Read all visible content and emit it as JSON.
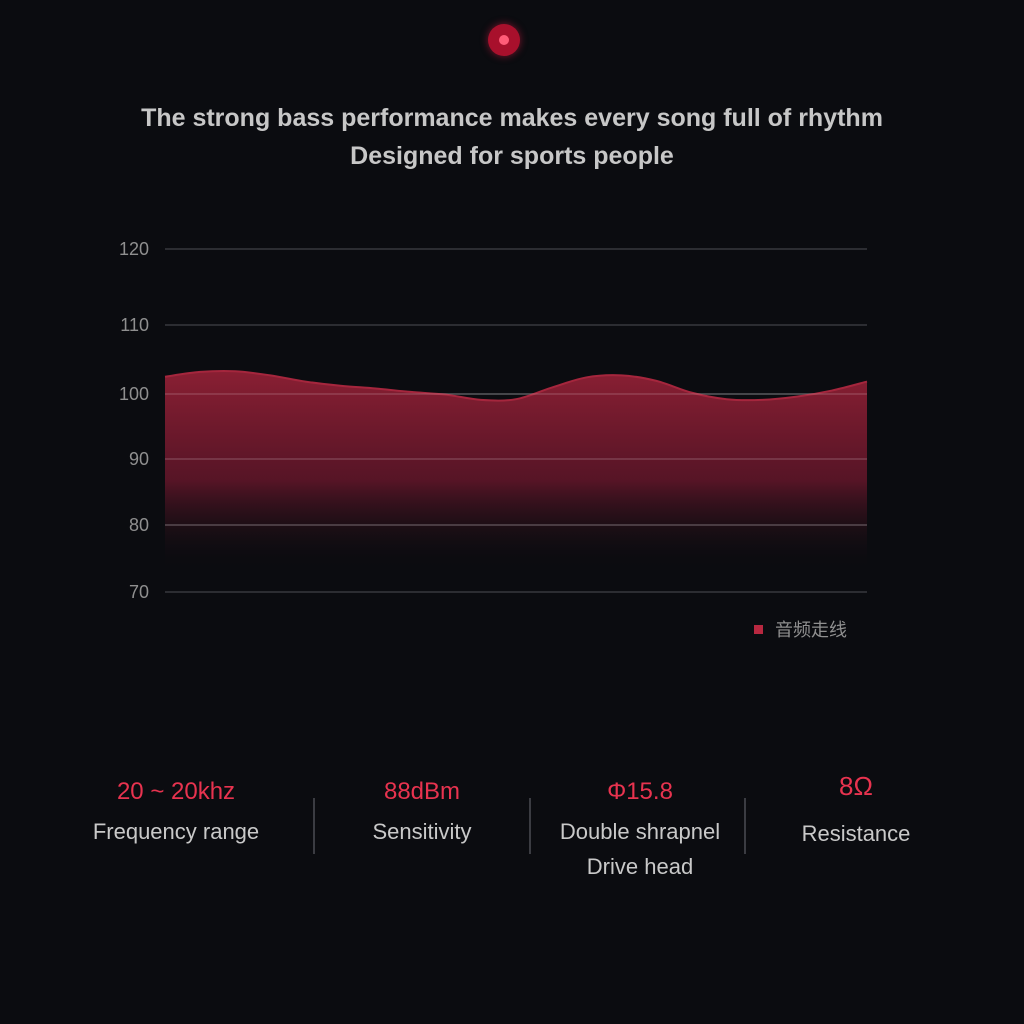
{
  "headline": {
    "line1": "The strong bass performance makes every song full of rhythm",
    "line2": "Designed for sports people"
  },
  "colors": {
    "background": "#0b0c10",
    "accent": "#e8334f",
    "area_top": "#8a1f33",
    "gridline": "#2c2d32",
    "axis_text": "#8f8f8f"
  },
  "chart_data": {
    "type": "area",
    "title": "",
    "xlabel": "",
    "ylabel": "",
    "ylim": [
      70,
      120
    ],
    "yticks": [
      "120",
      "110",
      "100",
      "90",
      "80",
      "70"
    ],
    "grid": true,
    "legend_position": "bottom-right",
    "series": [
      {
        "name": "音频走线",
        "x": [
          0,
          5,
          10,
          15,
          20,
          25,
          30,
          35,
          40,
          45,
          50,
          55,
          60,
          65,
          70,
          75,
          80,
          85,
          90,
          95,
          100
        ],
        "values": [
          102.5,
          103.2,
          103.3,
          102.7,
          101.8,
          101.2,
          100.8,
          100.3,
          99.9,
          99.1,
          99.2,
          100.9,
          102.4,
          102.7,
          101.9,
          100.2,
          99.2,
          99.1,
          99.6,
          100.5,
          101.8
        ]
      }
    ]
  },
  "specs": [
    {
      "value": "20 ~ 20khz",
      "label": "Frequency range"
    },
    {
      "value": "88dBm",
      "label": "Sensitivity"
    },
    {
      "value": "Φ15.8",
      "label": "Double shrapnel Drive head"
    },
    {
      "value": "8Ω",
      "label": "Resistance"
    }
  ]
}
